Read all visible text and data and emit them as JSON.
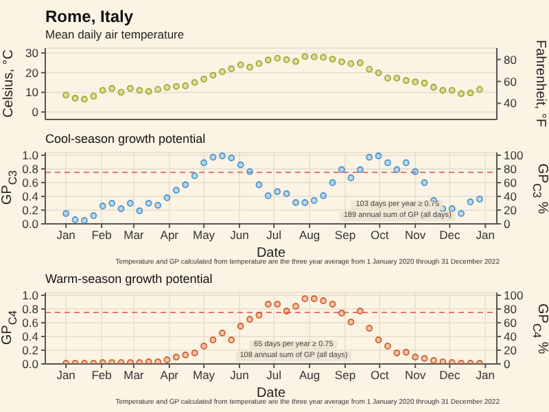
{
  "chart_data": [
    {
      "type": "scatter",
      "title": "Rome, Italy",
      "subtitle": "Mean daily air temperature",
      "ylabel": "Celsius, °C",
      "y2label": "Fahrenheit, °F",
      "marker": "circle",
      "grid": true,
      "tick_labels": "y",
      "x": [
        "2021-01-01",
        "2021-01-09",
        "2021-01-17",
        "2021-01-25",
        "2021-02-02",
        "2021-02-10",
        "2021-02-18",
        "2021-02-26",
        "2021-03-06",
        "2021-03-14",
        "2021-03-22",
        "2021-03-30",
        "2021-04-07",
        "2021-04-15",
        "2021-04-23",
        "2021-05-01",
        "2021-05-09",
        "2021-05-17",
        "2021-05-25",
        "2021-06-02",
        "2021-06-10",
        "2021-06-18",
        "2021-06-26",
        "2021-07-04",
        "2021-07-12",
        "2021-07-20",
        "2021-07-28",
        "2021-08-05",
        "2021-08-13",
        "2021-08-21",
        "2021-08-29",
        "2021-09-06",
        "2021-09-14",
        "2021-09-22",
        "2021-09-30",
        "2021-10-08",
        "2021-10-16",
        "2021-10-24",
        "2021-11-01",
        "2021-11-09",
        "2021-11-17",
        "2021-11-25",
        "2021-12-03",
        "2021-12-11",
        "2021-12-19",
        "2021-12-27"
      ],
      "series": [
        {
          "color": "#9aad2a",
          "values": [
            8.6,
            7,
            6.5,
            8,
            11,
            12,
            10,
            12,
            11,
            10.5,
            11.5,
            12.5,
            13,
            13.3,
            15,
            16.7,
            18.7,
            20.5,
            22,
            24,
            22.8,
            24.6,
            26.4,
            27.3,
            26.6,
            25.7,
            28.2,
            28,
            27.8,
            26.9,
            25.5,
            24.6,
            25,
            21.7,
            19.9,
            17.2,
            17.2,
            16,
            15.3,
            14.7,
            12.6,
            11,
            11,
            9.3,
            9.7,
            11.5
          ]
        }
      ],
      "xlim": [
        "2020-12-14",
        "2022-01-11"
      ],
      "xticks": [
        {
          "value": "2021-01-01",
          "label": null
        },
        {
          "value": "2021-02-01",
          "label": null
        },
        {
          "value": "2021-03-01",
          "label": null
        },
        {
          "value": "2021-04-01",
          "label": null
        },
        {
          "value": "2021-05-01",
          "label": null
        },
        {
          "value": "2021-06-01",
          "label": null
        },
        {
          "value": "2021-07-01",
          "label": null
        },
        {
          "value": "2021-08-01",
          "label": null
        },
        {
          "value": "2021-09-01",
          "label": null
        },
        {
          "value": "2021-10-01",
          "label": null
        },
        {
          "value": "2021-11-01",
          "label": null
        },
        {
          "value": "2021-12-01",
          "label": null
        },
        {
          "value": "2022-01-01",
          "label": null
        }
      ],
      "ylim": [
        -3.8,
        32.5
      ],
      "yticks": [
        0,
        10,
        20,
        30
      ],
      "y2lim": [
        25.2,
        90.5
      ],
      "y2ticks": [
        40,
        60,
        80
      ]
    },
    {
      "type": "scatter",
      "title": "Cool-season growth potential",
      "xlabel": "Date",
      "ylabel": "GP$_{C3}$",
      "y2label": "GP$_{C3}$ %",
      "marker": "circle",
      "grid": true,
      "x": [
        "2021-01-01",
        "2021-01-09",
        "2021-01-17",
        "2021-01-25",
        "2021-02-02",
        "2021-02-10",
        "2021-02-18",
        "2021-02-26",
        "2021-03-06",
        "2021-03-14",
        "2021-03-22",
        "2021-03-30",
        "2021-04-07",
        "2021-04-15",
        "2021-04-23",
        "2021-05-01",
        "2021-05-09",
        "2021-05-17",
        "2021-05-25",
        "2021-06-02",
        "2021-06-10",
        "2021-06-18",
        "2021-06-26",
        "2021-07-04",
        "2021-07-12",
        "2021-07-20",
        "2021-07-28",
        "2021-08-05",
        "2021-08-13",
        "2021-08-21",
        "2021-08-29",
        "2021-09-06",
        "2021-09-14",
        "2021-09-22",
        "2021-09-30",
        "2021-10-08",
        "2021-10-16",
        "2021-10-24",
        "2021-11-01",
        "2021-11-09",
        "2021-11-17",
        "2021-11-25",
        "2021-12-03",
        "2021-12-11",
        "2021-12-19",
        "2021-12-27"
      ],
      "series": [
        {
          "color": "#4a98d8",
          "values": [
            0.15,
            0.06,
            0.05,
            0.12,
            0.26,
            0.3,
            0.22,
            0.3,
            0.19,
            0.3,
            0.27,
            0.38,
            0.49,
            0.57,
            0.7,
            0.89,
            0.97,
            0.99,
            0.96,
            0.86,
            0.76,
            0.57,
            0.41,
            0.47,
            0.44,
            0.31,
            0.31,
            0.34,
            0.41,
            0.6,
            0.79,
            0.67,
            0.79,
            0.97,
            0.99,
            0.89,
            0.79,
            0.89,
            0.76,
            0.6,
            0.34,
            0.22,
            0.22,
            0.15,
            0.32,
            0.36
          ]
        }
      ],
      "xlim": [
        "2020-12-14",
        "2022-01-11"
      ],
      "xticks": [
        {
          "value": "2021-01-01",
          "label": "Jan"
        },
        {
          "value": "2021-02-01",
          "label": "Feb"
        },
        {
          "value": "2021-03-01",
          "label": "Mar"
        },
        {
          "value": "2021-04-01",
          "label": "Apr"
        },
        {
          "value": "2021-05-01",
          "label": "May"
        },
        {
          "value": "2021-06-01",
          "label": "Jun"
        },
        {
          "value": "2021-07-01",
          "label": "Jul"
        },
        {
          "value": "2021-08-01",
          "label": "Aug"
        },
        {
          "value": "2021-09-01",
          "label": "Sep"
        },
        {
          "value": "2021-10-01",
          "label": "Oct"
        },
        {
          "value": "2021-11-01",
          "label": "Nov"
        },
        {
          "value": "2021-12-01",
          "label": "Dec"
        },
        {
          "value": "2022-01-01",
          "label": "Jan"
        }
      ],
      "ylim": [
        0,
        1.04
      ],
      "yticks": [
        {
          "value": 0,
          "label": "0.0"
        },
        {
          "value": 0.2,
          "label": "0.2"
        },
        {
          "value": 0.4,
          "label": "0.4"
        },
        {
          "value": 0.6,
          "label": "0.6"
        },
        {
          "value": 0.8,
          "label": "0.8"
        },
        {
          "value": 1,
          "label": "1.0"
        }
      ],
      "y2lim": [
        0,
        104
      ],
      "y2ticks": [
        0,
        20,
        40,
        60,
        80,
        100
      ],
      "ref_lines": [
        {
          "axis": "y",
          "value": 0.75,
          "color": "#e8736c",
          "line_style": "dashed"
        }
      ],
      "annotations": [
        "103 days per year ≥ 0.75",
        "189 annual sum of GP (all days)",
        "Temperature and GP calculated from temperature are the three year average from 1 January 2020 through 31 December 2022"
      ]
    },
    {
      "type": "scatter",
      "title": "Warm-season growth potential",
      "xlabel": "Date",
      "ylabel": "GP$_{C4}$",
      "y2label": "GP$_{C4}$ %",
      "marker": "circle",
      "grid": true,
      "x": [
        "2021-01-01",
        "2021-01-09",
        "2021-01-17",
        "2021-01-25",
        "2021-02-02",
        "2021-02-10",
        "2021-02-18",
        "2021-02-26",
        "2021-03-06",
        "2021-03-14",
        "2021-03-22",
        "2021-03-30",
        "2021-04-07",
        "2021-04-15",
        "2021-04-23",
        "2021-05-01",
        "2021-05-09",
        "2021-05-17",
        "2021-05-25",
        "2021-06-02",
        "2021-06-10",
        "2021-06-18",
        "2021-06-26",
        "2021-07-04",
        "2021-07-12",
        "2021-07-20",
        "2021-07-28",
        "2021-08-05",
        "2021-08-13",
        "2021-08-21",
        "2021-08-29",
        "2021-09-06",
        "2021-09-14",
        "2021-09-22",
        "2021-09-30",
        "2021-10-08",
        "2021-10-16",
        "2021-10-24",
        "2021-11-01",
        "2021-11-09",
        "2021-11-17",
        "2021-11-25",
        "2021-12-03",
        "2021-12-11",
        "2021-12-19",
        "2021-12-27"
      ],
      "series": [
        {
          "color": "#d2602e",
          "values": [
            0.01,
            0.01,
            0.01,
            0.01,
            0.02,
            0.02,
            0.02,
            0.02,
            0.02,
            0.03,
            0.03,
            0.06,
            0.1,
            0.13,
            0.16,
            0.26,
            0.35,
            0.45,
            0.35,
            0.55,
            0.65,
            0.71,
            0.87,
            0.87,
            0.77,
            0.84,
            0.95,
            0.95,
            0.92,
            0.87,
            0.74,
            0.61,
            0.77,
            0.52,
            0.35,
            0.26,
            0.16,
            0.17,
            0.1,
            0.08,
            0.05,
            0.03,
            0.02,
            0.01,
            0.01,
            0.01
          ]
        }
      ],
      "xlim": [
        "2020-12-14",
        "2022-01-11"
      ],
      "xticks": [
        {
          "value": "2021-01-01",
          "label": "Jan"
        },
        {
          "value": "2021-02-01",
          "label": "Feb"
        },
        {
          "value": "2021-03-01",
          "label": "Mar"
        },
        {
          "value": "2021-04-01",
          "label": "Apr"
        },
        {
          "value": "2021-05-01",
          "label": "May"
        },
        {
          "value": "2021-06-01",
          "label": "Jun"
        },
        {
          "value": "2021-07-01",
          "label": "Jul"
        },
        {
          "value": "2021-08-01",
          "label": "Aug"
        },
        {
          "value": "2021-09-01",
          "label": "Sep"
        },
        {
          "value": "2021-10-01",
          "label": "Oct"
        },
        {
          "value": "2021-11-01",
          "label": "Nov"
        },
        {
          "value": "2021-12-01",
          "label": "Dec"
        },
        {
          "value": "2022-01-01",
          "label": "Jan"
        }
      ],
      "ylim": [
        0,
        1.04
      ],
      "yticks": [
        {
          "value": 0,
          "label": "0.0"
        },
        {
          "value": 0.2,
          "label": "0.2"
        },
        {
          "value": 0.4,
          "label": "0.4"
        },
        {
          "value": 0.6,
          "label": "0.6"
        },
        {
          "value": 0.8,
          "label": "0.8"
        },
        {
          "value": 1,
          "label": "1.0"
        }
      ],
      "y2lim": [
        0,
        104
      ],
      "y2ticks": [
        0,
        20,
        40,
        60,
        80,
        100
      ],
      "ref_lines": [
        {
          "axis": "y",
          "value": 0.75,
          "color": "#e8736c",
          "line_style": "dashed"
        }
      ],
      "annotations": [
        "65 days per year ≥ 0.75",
        "108 annual sum of GP (all days)",
        "Temperature and GP calculated from temperature are the three year average from 1 January 2020 through 31 December 2022"
      ]
    }
  ]
}
